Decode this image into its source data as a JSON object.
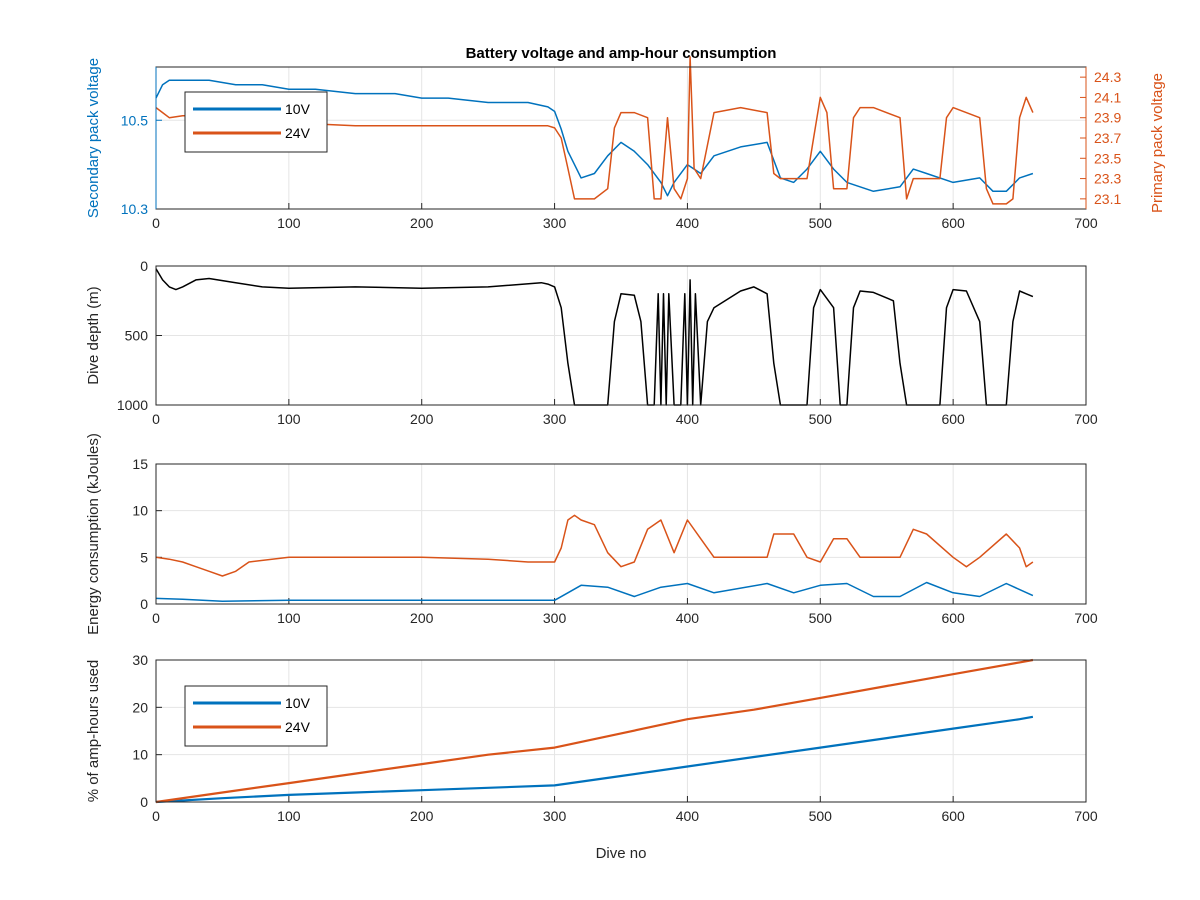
{
  "figure": {
    "title": "Battery voltage and amp-hour consumption"
  },
  "colors": {
    "series_10v": "#0072BD",
    "series_24v": "#D95319",
    "depth": "#000000",
    "grid": "#e5e5e5",
    "axes": "#262626"
  },
  "chart_data": [
    {
      "type": "line",
      "title": "Battery voltage and amp-hour consumption",
      "xlabel": "",
      "ylabel": "Secondary pack voltage",
      "ylabel_right": "Primary pack voltage",
      "xlim": [
        0,
        700
      ],
      "ylim": [
        10.3,
        10.62
      ],
      "ylim_right": [
        23.0,
        24.4
      ],
      "xticks": [
        "0",
        "100",
        "200",
        "300",
        "400",
        "500",
        "600",
        "700"
      ],
      "yticks": [
        "10.3",
        "10.5"
      ],
      "yticks_right": [
        "23.1",
        "23.3",
        "23.5",
        "23.7",
        "23.9",
        "24.1",
        "24.3"
      ],
      "grid": true,
      "legend": {
        "placement": "top-left",
        "entries": [
          "10V",
          "24V"
        ]
      },
      "series": [
        {
          "name": "10V",
          "axis": "left",
          "x": [
            0,
            5,
            10,
            20,
            40,
            60,
            80,
            100,
            120,
            150,
            180,
            200,
            220,
            250,
            280,
            295,
            300,
            305,
            310,
            315,
            320,
            330,
            340,
            350,
            360,
            370,
            380,
            385,
            390,
            400,
            410,
            420,
            440,
            460,
            470,
            480,
            490,
            500,
            510,
            520,
            540,
            560,
            570,
            580,
            600,
            620,
            630,
            640,
            650,
            660
          ],
          "y": [
            10.55,
            10.58,
            10.59,
            10.59,
            10.59,
            10.58,
            10.58,
            10.57,
            10.57,
            10.56,
            10.56,
            10.55,
            10.55,
            10.54,
            10.54,
            10.53,
            10.52,
            10.48,
            10.43,
            10.4,
            10.37,
            10.38,
            10.42,
            10.45,
            10.43,
            10.4,
            10.36,
            10.33,
            10.36,
            10.4,
            10.38,
            10.42,
            10.44,
            10.45,
            10.37,
            10.36,
            10.39,
            10.43,
            10.39,
            10.36,
            10.34,
            10.35,
            10.39,
            10.38,
            10.36,
            10.37,
            10.34,
            10.34,
            10.37,
            10.38
          ]
        },
        {
          "name": "24V",
          "axis": "right",
          "x": [
            0,
            5,
            10,
            20,
            40,
            60,
            80,
            100,
            150,
            200,
            250,
            280,
            295,
            300,
            305,
            310,
            315,
            320,
            330,
            340,
            345,
            350,
            360,
            370,
            375,
            380,
            385,
            390,
            395,
            400,
            402,
            405,
            410,
            420,
            440,
            460,
            465,
            470,
            490,
            495,
            500,
            505,
            510,
            520,
            525,
            530,
            540,
            560,
            565,
            570,
            590,
            595,
            600,
            620,
            625,
            630,
            640,
            645,
            650,
            655,
            660
          ],
          "y": [
            24.0,
            23.95,
            23.9,
            23.92,
            23.92,
            23.88,
            23.84,
            23.85,
            23.82,
            23.82,
            23.82,
            23.82,
            23.82,
            23.8,
            23.7,
            23.4,
            23.1,
            23.1,
            23.1,
            23.2,
            23.8,
            23.95,
            23.95,
            23.9,
            23.1,
            23.1,
            23.9,
            23.2,
            23.1,
            23.3,
            24.5,
            23.4,
            23.3,
            23.95,
            24.0,
            23.95,
            23.35,
            23.3,
            23.3,
            23.7,
            24.1,
            23.95,
            23.2,
            23.2,
            23.9,
            24.0,
            24.0,
            23.9,
            23.1,
            23.3,
            23.3,
            23.9,
            24.0,
            23.9,
            23.2,
            23.05,
            23.05,
            23.1,
            23.9,
            24.1,
            23.95
          ]
        }
      ]
    },
    {
      "type": "line",
      "xlabel": "",
      "ylabel": "Dive depth (m)",
      "xlim": [
        0,
        700
      ],
      "ylim": [
        0,
        1000
      ],
      "y_reversed": true,
      "xticks": [
        "0",
        "100",
        "200",
        "300",
        "400",
        "500",
        "600",
        "700"
      ],
      "yticks": [
        "0",
        "500",
        "1000"
      ],
      "grid": true,
      "series": [
        {
          "x": [
            0,
            5,
            10,
            15,
            20,
            30,
            40,
            60,
            80,
            100,
            150,
            200,
            250,
            290,
            295,
            300,
            305,
            310,
            315,
            320,
            330,
            340,
            345,
            350,
            360,
            365,
            370,
            375,
            378,
            380,
            382,
            384,
            386,
            390,
            395,
            398,
            400,
            402,
            404,
            406,
            410,
            415,
            420,
            440,
            450,
            460,
            465,
            470,
            490,
            495,
            500,
            510,
            515,
            520,
            525,
            530,
            540,
            555,
            560,
            565,
            570,
            590,
            595,
            600,
            610,
            620,
            625,
            630,
            640,
            645,
            650,
            655,
            660
          ],
          "y": [
            20,
            100,
            150,
            170,
            150,
            100,
            90,
            120,
            150,
            160,
            150,
            160,
            150,
            120,
            130,
            150,
            300,
            700,
            1000,
            1000,
            1000,
            1000,
            400,
            200,
            210,
            400,
            1000,
            1000,
            200,
            1000,
            200,
            1000,
            200,
            1000,
            1000,
            200,
            1000,
            100,
            1000,
            200,
            1000,
            400,
            300,
            180,
            150,
            200,
            700,
            1000,
            1000,
            300,
            170,
            300,
            1000,
            1000,
            300,
            180,
            190,
            250,
            700,
            1000,
            1000,
            1000,
            300,
            170,
            180,
            400,
            1000,
            1000,
            1000,
            400,
            180,
            200,
            220
          ]
        }
      ]
    },
    {
      "type": "line",
      "xlabel": "",
      "ylabel": "Energy consumption (kJoules)",
      "xlim": [
        0,
        700
      ],
      "ylim": [
        0,
        15
      ],
      "xticks": [
        "0",
        "100",
        "200",
        "300",
        "400",
        "500",
        "600",
        "700"
      ],
      "yticks": [
        "0",
        "5",
        "10",
        "15"
      ],
      "grid": true,
      "series": [
        {
          "name": "24V",
          "x": [
            0,
            10,
            20,
            30,
            40,
            50,
            60,
            70,
            100,
            150,
            200,
            250,
            280,
            300,
            305,
            310,
            315,
            320,
            330,
            340,
            350,
            360,
            370,
            380,
            390,
            400,
            410,
            420,
            440,
            460,
            465,
            480,
            490,
            500,
            510,
            520,
            530,
            540,
            560,
            570,
            580,
            600,
            610,
            620,
            640,
            650,
            655,
            660
          ],
          "y": [
            5,
            4.8,
            4.5,
            4,
            3.5,
            3,
            3.5,
            4.5,
            5,
            5,
            5,
            4.8,
            4.5,
            4.5,
            6,
            9,
            9.5,
            9,
            8.5,
            5.5,
            4,
            4.5,
            8,
            9,
            5.5,
            9,
            7,
            5,
            5,
            5,
            7.5,
            7.5,
            5,
            4.5,
            7,
            7,
            5,
            5,
            5,
            8,
            7.5,
            5,
            4,
            5,
            7.5,
            6,
            4,
            4.5
          ]
        },
        {
          "name": "10V",
          "x": [
            0,
            20,
            50,
            100,
            200,
            300,
            310,
            320,
            340,
            360,
            380,
            400,
            420,
            460,
            480,
            500,
            520,
            540,
            560,
            580,
            600,
            620,
            640,
            660
          ],
          "y": [
            0.6,
            0.5,
            0.3,
            0.4,
            0.4,
            0.4,
            1.2,
            2,
            1.8,
            0.8,
            1.8,
            2.2,
            1.2,
            2.2,
            1.2,
            2,
            2.2,
            0.8,
            0.8,
            2.3,
            1.2,
            0.8,
            2.2,
            0.9
          ]
        }
      ]
    },
    {
      "type": "line",
      "xlabel": "Dive no",
      "ylabel": "% of amp-hours used",
      "xlim": [
        0,
        700
      ],
      "ylim": [
        0,
        30
      ],
      "xticks": [
        "0",
        "100",
        "200",
        "300",
        "400",
        "500",
        "600",
        "700"
      ],
      "yticks": [
        "0",
        "10",
        "20",
        "30"
      ],
      "grid": true,
      "legend": {
        "placement": "top-left",
        "entries": [
          "10V",
          "24V"
        ]
      },
      "series": [
        {
          "name": "10V",
          "x": [
            0,
            50,
            100,
            150,
            200,
            250,
            300,
            350,
            400,
            450,
            500,
            550,
            600,
            650,
            660
          ],
          "y": [
            0,
            0.8,
            1.5,
            2,
            2.5,
            3,
            3.5,
            5.5,
            7.5,
            9.5,
            11.5,
            13.5,
            15.5,
            17.5,
            18
          ]
        },
        {
          "name": "24V",
          "x": [
            0,
            50,
            100,
            150,
            200,
            250,
            300,
            350,
            400,
            450,
            500,
            550,
            600,
            650,
            660
          ],
          "y": [
            0,
            2,
            4,
            6,
            8,
            10,
            11.5,
            14.5,
            17.5,
            19.5,
            22,
            24.5,
            27,
            29.5,
            30
          ]
        }
      ]
    }
  ]
}
